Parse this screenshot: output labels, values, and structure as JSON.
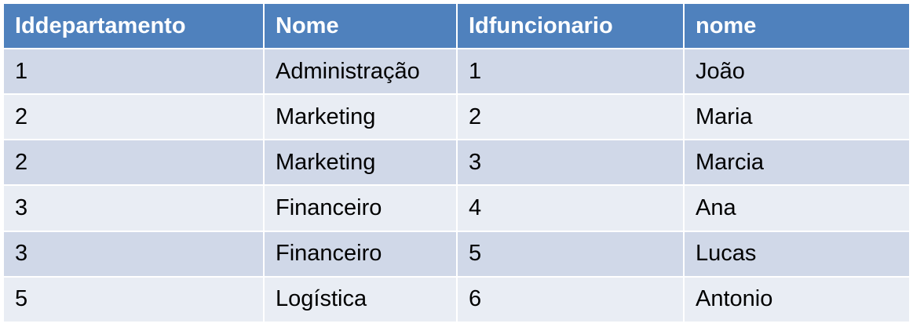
{
  "table": {
    "headers": [
      "Iddepartamento",
      "Nome",
      "Idfuncionario",
      "nome"
    ],
    "rows": [
      [
        "1",
        "Administração",
        "1",
        "João"
      ],
      [
        "2",
        "Marketing",
        "2",
        "Maria"
      ],
      [
        "2",
        "Marketing",
        "3",
        "Marcia"
      ],
      [
        "3",
        "Financeiro",
        "4",
        "Ana"
      ],
      [
        "3",
        "Financeiro",
        "5",
        "Lucas"
      ],
      [
        "5",
        "Logística",
        "6",
        "Antonio"
      ]
    ]
  },
  "colors": {
    "header_bg": "#4f81bd",
    "header_text": "#ffffff",
    "row_odd_bg": "#d0d8e8",
    "row_even_bg": "#e9edf4",
    "cell_text": "#000000",
    "grid_line": "#ffffff"
  }
}
